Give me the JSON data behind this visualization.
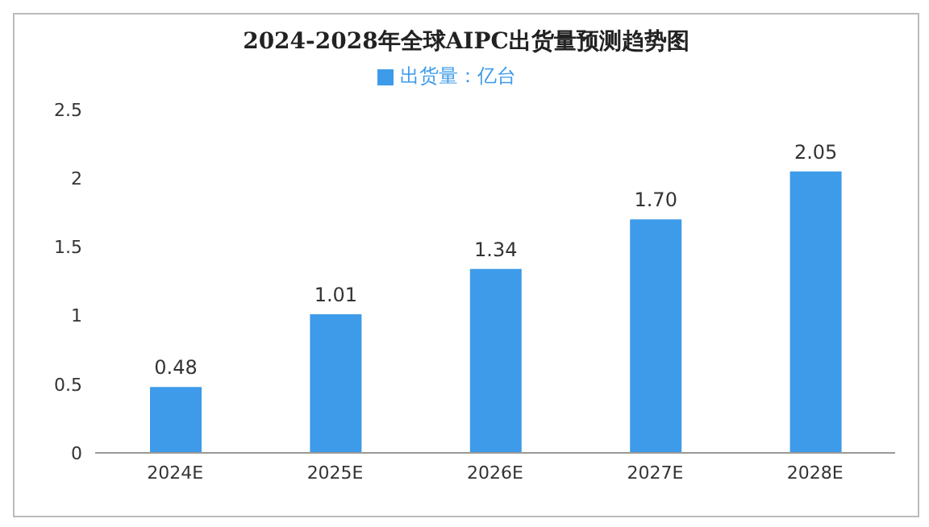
{
  "chart_data": {
    "type": "bar",
    "title": "2024-2028年全球AIPC出货量预测趋势图",
    "categories": [
      "2024E",
      "2025E",
      "2026E",
      "2027E",
      "2028E"
    ],
    "series": [
      {
        "name": "出货量：亿台",
        "color": "#3d9be9",
        "values": [
          0.48,
          1.01,
          1.34,
          1.7,
          2.05
        ],
        "value_labels": [
          "0.48",
          "1.01",
          "1.34",
          "1.70",
          "2.05"
        ]
      }
    ],
    "ylim": [
      0,
      2.5
    ],
    "yticks": [
      0,
      0.5,
      1,
      1.5,
      2,
      2.5
    ],
    "grid": false,
    "legend": "top"
  }
}
